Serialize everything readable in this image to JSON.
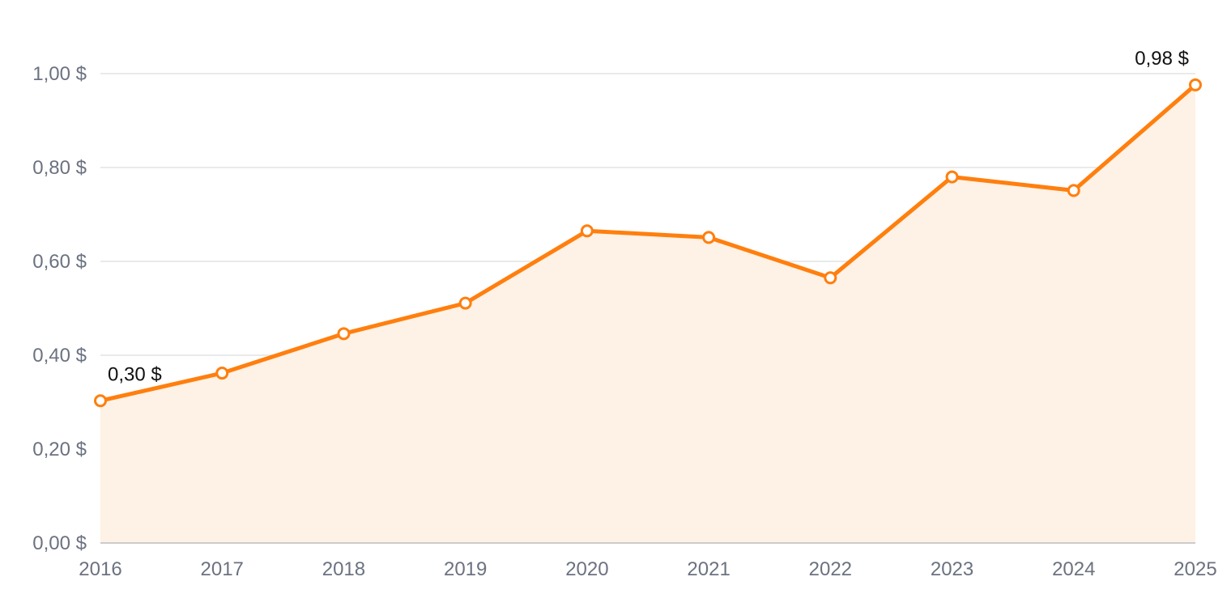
{
  "chart_data": {
    "type": "area",
    "title": "",
    "xlabel": "",
    "ylabel": "",
    "categories": [
      "2016",
      "2017",
      "2018",
      "2019",
      "2020",
      "2021",
      "2022",
      "2023",
      "2024",
      "2025"
    ],
    "series": [
      {
        "values": [
          0.303,
          0.362,
          0.446,
          0.511,
          0.665,
          0.651,
          0.565,
          0.78,
          0.751,
          0.976
        ]
      }
    ],
    "ylim": [
      0,
      1
    ],
    "y_ticks": [
      0,
      0.2,
      0.4,
      0.6,
      0.8,
      1.0
    ],
    "y_tick_labels": [
      "0,00 $",
      "0,20 $",
      "0,40 $",
      "0,60 $",
      "0,80 $",
      "1,00 $"
    ],
    "data_labels": [
      {
        "category": "2016",
        "text": "0,30 $"
      },
      {
        "category": "2025",
        "text": "0,98 $"
      }
    ],
    "grid": true,
    "legend": "none",
    "colors": {
      "line": "#ff7f0e",
      "fill": "#fef1e5",
      "grid": "#e3e3e3",
      "axis": "#cccccc",
      "marker_fill": "#ffffff"
    }
  }
}
